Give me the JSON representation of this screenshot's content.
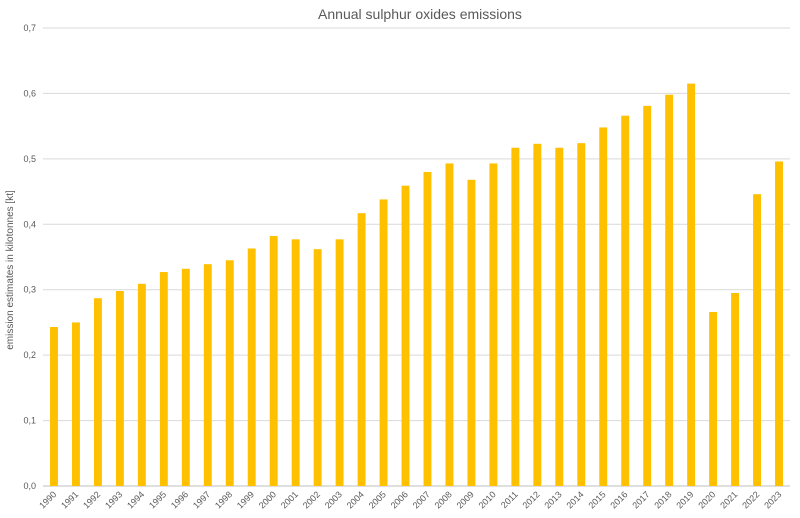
{
  "chart_data": {
    "type": "bar",
    "title": "Annual sulphur oxides emissions",
    "xlabel": "",
    "ylabel": "emission estimates in kilotonnes [kt]",
    "ylim": [
      0,
      0.7
    ],
    "yticks": [
      "0,0",
      "0,1",
      "0,2",
      "0,3",
      "0,4",
      "0,5",
      "0,6",
      "0,7"
    ],
    "grid": true,
    "legend": "none",
    "bar_color": "#FFC000",
    "categories": [
      "1990",
      "1991",
      "1992",
      "1993",
      "1994",
      "1995",
      "1996",
      "1997",
      "1998",
      "1999",
      "2000",
      "2001",
      "2002",
      "2003",
      "2004",
      "2005",
      "2006",
      "2007",
      "2008",
      "2009",
      "2010",
      "2011",
      "2012",
      "2013",
      "2014",
      "2015",
      "2016",
      "2017",
      "2018",
      "2019",
      "2020",
      "2021",
      "2022",
      "2023"
    ],
    "values": [
      0.243,
      0.25,
      0.287,
      0.298,
      0.309,
      0.327,
      0.332,
      0.339,
      0.345,
      0.363,
      0.382,
      0.377,
      0.362,
      0.377,
      0.417,
      0.438,
      0.459,
      0.48,
      0.493,
      0.468,
      0.493,
      0.517,
      0.523,
      0.517,
      0.524,
      0.548,
      0.566,
      0.581,
      0.598,
      0.615,
      0.266,
      0.295,
      0.446,
      0.496
    ]
  }
}
